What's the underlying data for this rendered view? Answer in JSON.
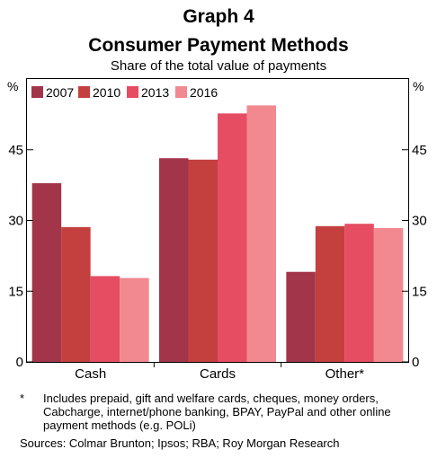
{
  "chart_data": {
    "type": "bar",
    "title": "Graph 4",
    "subtitle_title": "Consumer Payment Methods",
    "subtitle": "Share of the total value of payments",
    "ylabel_left": "%",
    "ylabel_right": "%",
    "ylim": [
      0,
      60
    ],
    "yticks": [
      0,
      15,
      30,
      45
    ],
    "categories": [
      "Cash",
      "Cards",
      "Other*"
    ],
    "series": [
      {
        "name": "2007",
        "color": "#a3354a",
        "values": [
          37.9,
          43.2,
          19.1
        ]
      },
      {
        "name": "2010",
        "color": "#c4403e",
        "values": [
          28.6,
          42.9,
          28.8
        ]
      },
      {
        "name": "2013",
        "color": "#e64d63",
        "values": [
          18.2,
          52.7,
          29.3
        ]
      },
      {
        "name": "2016",
        "color": "#f28890",
        "values": [
          17.8,
          54.4,
          28.4
        ]
      }
    ],
    "legend_position": "top-left",
    "grid": false
  },
  "footnote": {
    "marker": "*",
    "text": "Includes prepaid, gift and welfare cards, cheques, money orders, Cabcharge, internet/phone banking, BPAY, PayPal and other online payment methods (e.g. POLi)"
  },
  "sources": "Sources: Colmar Brunton; Ipsos; RBA; Roy Morgan Research"
}
